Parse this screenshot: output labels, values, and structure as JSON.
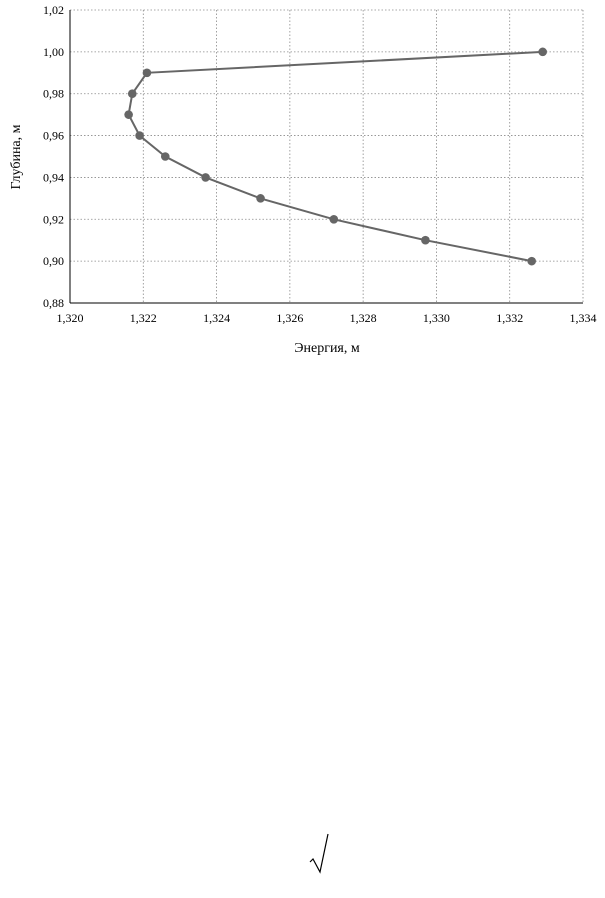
{
  "chart_data": {
    "type": "line",
    "xlabel": "Энергия, м",
    "ylabel": "Глубина, м",
    "xlim": [
      1.32,
      1.334
    ],
    "ylim": [
      0.88,
      1.02
    ],
    "xticks": [
      "1,320",
      "1,322",
      "1,324",
      "1,326",
      "1,328",
      "1,330",
      "1,332",
      "1,334"
    ],
    "yticks": [
      "0,88",
      "0,90",
      "0,92",
      "0,94",
      "0,96",
      "0,98",
      "1,00",
      "1,02"
    ],
    "grid": true,
    "series": [
      {
        "color": "#666666",
        "x": [
          1.3329,
          1.3221,
          1.3217,
          1.3216,
          1.3219,
          1.3226,
          1.3237,
          1.3252,
          1.3272,
          1.3297,
          1.3326
        ],
        "y": [
          1.0,
          0.99,
          0.98,
          0.97,
          0.96,
          0.95,
          0.94,
          0.93,
          0.92,
          0.91,
          0.9
        ]
      }
    ]
  },
  "footer": {
    "symbol": "√"
  }
}
